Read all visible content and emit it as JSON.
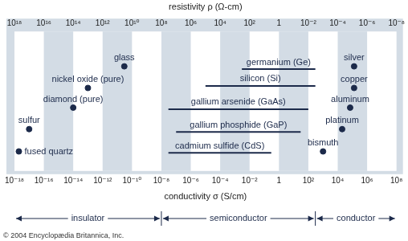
{
  "chart_data": {
    "type": "scatter",
    "log": "x",
    "color": "#1c2a4a",
    "x_label": "conductivity σ (S/cm)",
    "x2_label": "resistivity ρ (Ω-cm)",
    "xlim": [
      1e-18,
      100000000.0
    ],
    "xticks": [
      {
        "value": 1e-18,
        "label": "10⁻¹⁸"
      },
      {
        "value": 1e-16,
        "label": "10⁻¹⁶"
      },
      {
        "value": 1e-14,
        "label": "10⁻¹⁴"
      },
      {
        "value": 1e-12,
        "label": "10⁻¹²"
      },
      {
        "value": 1e-10,
        "label": "10⁻¹⁰"
      },
      {
        "value": 1e-08,
        "label": "10⁻⁸"
      },
      {
        "value": 1e-06,
        "label": "10⁻⁶"
      },
      {
        "value": 0.0001,
        "label": "10⁻⁴"
      },
      {
        "value": 0.01,
        "label": "10⁻²"
      },
      1,
      {
        "value": 100.0,
        "label": "10²"
      },
      {
        "value": 10000.0,
        "label": "10⁴"
      },
      {
        "value": 1000000.0,
        "label": "10⁶"
      },
      {
        "value": 100000000.0,
        "label": "10⁸"
      }
    ],
    "x2lim": [
      1e+18,
      1e-08
    ],
    "x2ticks": [
      {
        "value": 1e+18,
        "label": "10¹⁸"
      },
      {
        "value": 1e+16,
        "label": "10¹⁶"
      },
      {
        "value": 100000000000000.0,
        "label": "10¹⁴"
      },
      {
        "value": 1000000000000.0,
        "label": "10¹²"
      },
      {
        "value": 10000000000.0,
        "label": "10¹⁰"
      },
      {
        "value": 100000000.0,
        "label": "10⁸"
      },
      {
        "value": 1000000.0,
        "label": "10⁶"
      },
      {
        "value": 10000.0,
        "label": "10⁴"
      },
      {
        "value": 100.0,
        "label": "10²"
      },
      1,
      {
        "value": 0.01,
        "label": "10⁻²"
      },
      {
        "value": 0.0001,
        "label": "10⁻⁴"
      },
      {
        "value": 1e-06,
        "label": "10⁻⁶"
      },
      {
        "value": 1e-08,
        "label": "10⁻⁸"
      }
    ],
    "points": [
      {
        "name": "glass",
        "x": 3e-11
      },
      {
        "name": "nickel oxide (pure)",
        "x": 1e-13
      },
      {
        "name": "diamond (pure)",
        "x": 1e-14
      },
      {
        "name": "sulfur",
        "x": 1e-17
      },
      {
        "name": "fused quartz",
        "x": 2e-18
      },
      {
        "name": "silver",
        "x": 130000.0
      },
      {
        "name": "copper",
        "x": 130000.0
      },
      {
        "name": "aluminum",
        "x": 70000.0
      },
      {
        "name": "platinum",
        "x": 20000.0
      },
      {
        "name": "bismuth",
        "x": 1000.0
      }
    ],
    "ranges": [
      {
        "name": "germanium (Ge)",
        "x": [
          0.003,
          300
        ]
      },
      {
        "name": "silicon (Si)",
        "x": [
          1e-05,
          300
        ]
      },
      {
        "name": "gallium arsenide (GaAs)",
        "x": [
          3e-08,
          100
        ]
      },
      {
        "name": "gallium phosphide (GaP)",
        "x": [
          1e-07,
          30
        ]
      },
      {
        "name": "cadmium sulfide (CdS)",
        "x": [
          3e-08,
          0.3
        ]
      }
    ],
    "regions": [
      {
        "name": "insulator",
        "x": [
          1e-18,
          1e-08
        ]
      },
      {
        "name": "semiconductor",
        "x": [
          1e-08,
          300
        ]
      },
      {
        "name": "conductor",
        "x": [
          300,
          100000000.0
        ]
      }
    ],
    "credit": "© 2004 Encyclopædia Britannica, Inc."
  }
}
